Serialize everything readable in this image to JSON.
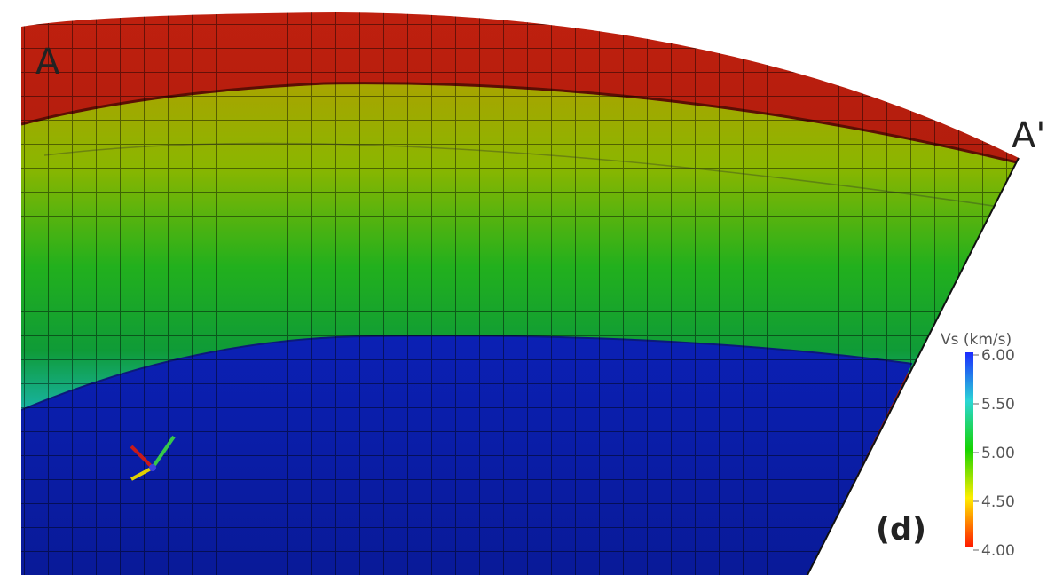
{
  "figure": {
    "panel_label": "(d)",
    "section_start_label": "A",
    "section_end_label": "A'"
  },
  "colorbar": {
    "title": "Vs (km/s)",
    "ticks": [
      "6.00",
      "5.50",
      "5.00",
      "4.50",
      "4.00"
    ],
    "min": 4.0,
    "max": 6.0,
    "colormap": [
      "#ff1a00",
      "#ffee00",
      "#16d400",
      "#2bd6d6",
      "#1b2bff"
    ]
  },
  "layers": [
    {
      "name": "upper-layer",
      "color": "#b11b0a"
    },
    {
      "name": "middle-layer-top",
      "color": "#a6a600"
    },
    {
      "name": "middle-layer-bottom",
      "color": "#0f9e2a"
    },
    {
      "name": "lower-layer",
      "color": "#0b1da8"
    }
  ],
  "axes_triad": {
    "x_color": "#c81a1a",
    "y_color": "#36c84a",
    "z_color": "#e0d000"
  }
}
